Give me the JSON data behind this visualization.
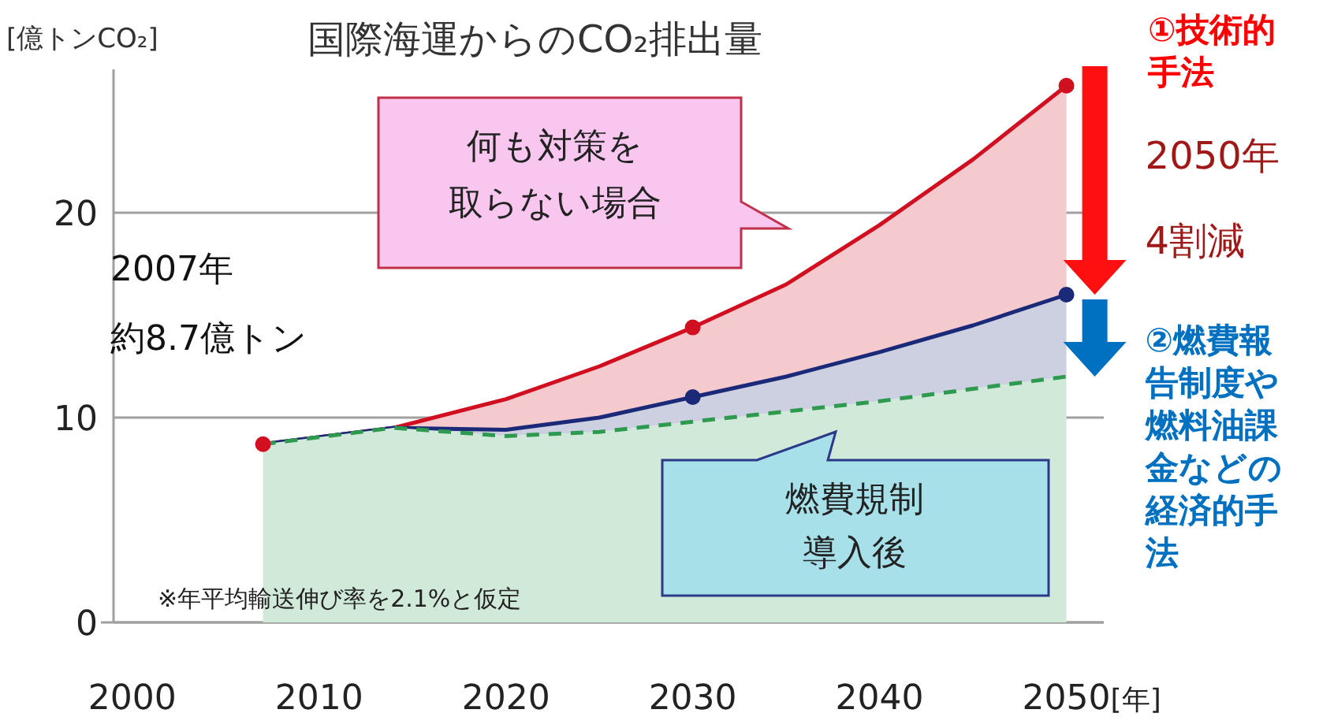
{
  "chart_data": {
    "type": "area",
    "title": "国際海運からのCO₂排出量",
    "ylabel": "[億トンCO₂]",
    "xlabel": "[年]",
    "xlim": [
      1999,
      2052
    ],
    "ylim": [
      0,
      27
    ],
    "xticks": [
      2000,
      2010,
      2020,
      2030,
      2040,
      2050
    ],
    "yticks": [
      0,
      10,
      20
    ],
    "grid": "y",
    "x": [
      2007,
      2014,
      2020,
      2025,
      2030,
      2035,
      2040,
      2045,
      2050
    ],
    "series": [
      {
        "color": "#d01020",
        "line_style": "solid",
        "values": [
          8.7,
          9.5,
          10.9,
          12.5,
          14.4,
          16.5,
          19.4,
          22.6,
          26.2
        ]
      },
      {
        "color": "#1a2a78",
        "line_style": "solid",
        "values": [
          8.7,
          9.5,
          9.4,
          10.0,
          11.0,
          12.0,
          13.2,
          14.5,
          16.0
        ]
      },
      {
        "color": "#2e9a50",
        "line_style": "dashed",
        "values": [
          8.7,
          9.5,
          9.1,
          9.3,
          9.8,
          10.3,
          10.8,
          11.4,
          12.0
        ]
      },
      {
        "type": "scatter",
        "color": "#d01020",
        "marker": "circle",
        "x": [
          2007,
          2030,
          2050
        ],
        "values": [
          8.7,
          14.4,
          26.2
        ]
      },
      {
        "type": "scatter",
        "color": "#1a2a78",
        "marker": "circle",
        "x": [
          2030,
          2050
        ],
        "values": [
          11.0,
          16.0
        ]
      }
    ],
    "annotations": [
      "何も対策を取らない場合",
      "燃費規制導入後",
      "2007年約8.7億トン",
      "※年平均輸送伸び率を2.1%と仮定",
      "①技術的手法",
      {
        "text": "2050年4割減",
        "x": 2050,
        "y": 20.0
      },
      {
        "text": "②燃費報告制度や燃料油課金などの経済的手法",
        "x": 2050,
        "y": 14.0
      }
    ]
  }
}
